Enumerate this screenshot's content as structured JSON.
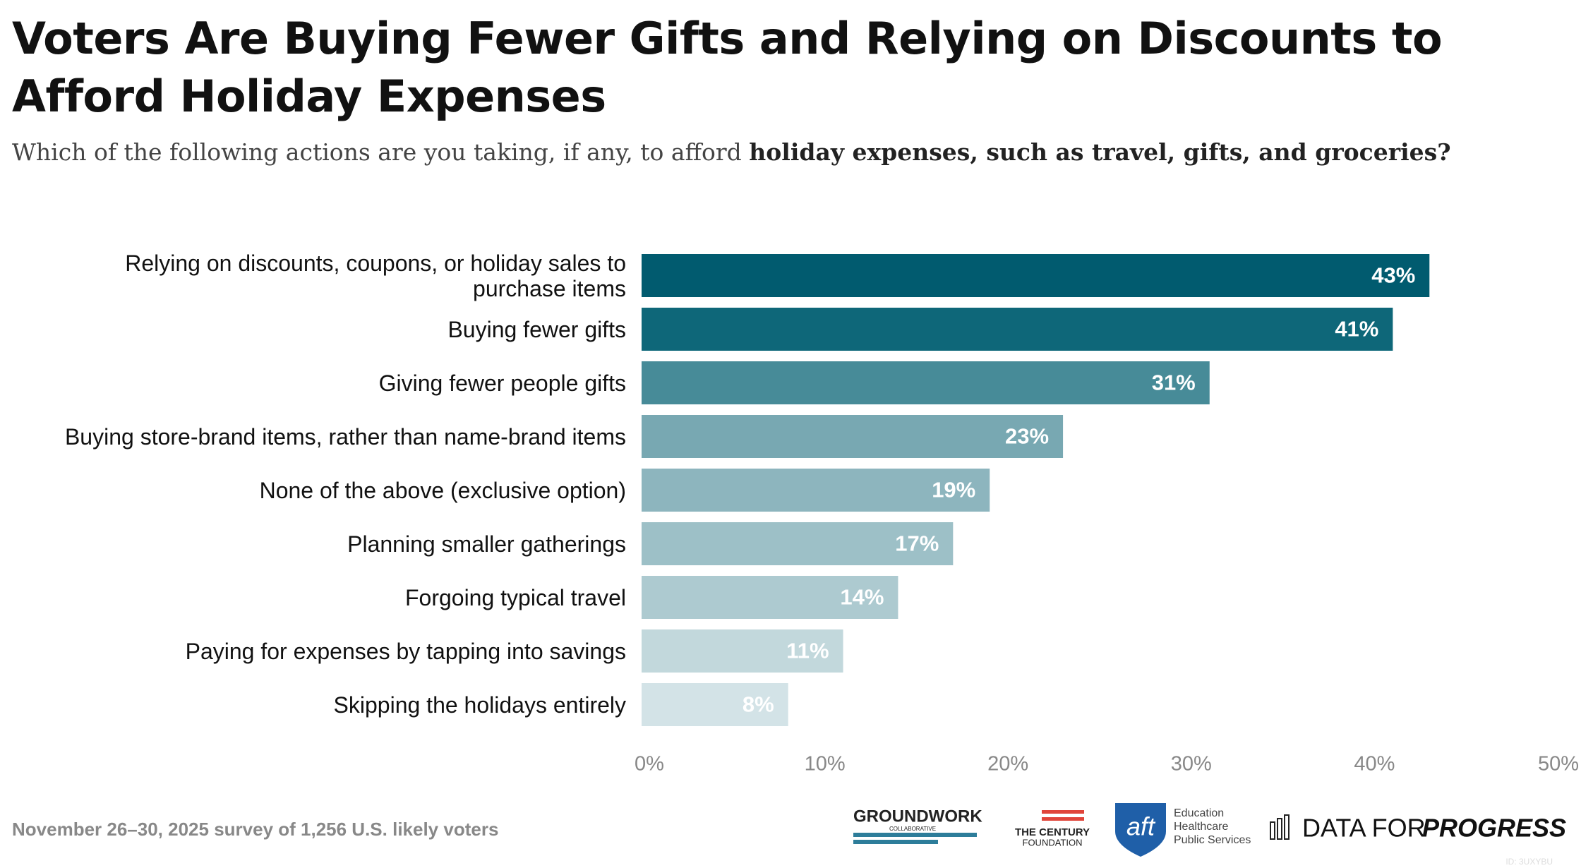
{
  "chart_data": {
    "type": "bar",
    "orientation": "horizontal",
    "title": "Voters Are Buying Fewer Gifts and Relying on Discounts to Afford Holiday Expenses",
    "subtitle": [
      "Which of the following actions are you taking, if any, to afford ",
      "holiday expenses, such as travel, gifts, and groceries?"
    ],
    "categories": [
      "Relying on discounts, coupons, or holiday sales to purchase items",
      "Buying fewer gifts",
      "Giving fewer people gifts",
      "Buying store-brand items, rather than name-brand items",
      "None of the above (exclusive option)",
      "Planning smaller gatherings",
      "Forgoing typical travel",
      "Paying for expenses by tapping into savings",
      "Skipping the holidays entirely"
    ],
    "values": [
      43,
      41,
      31,
      23,
      19,
      17,
      14,
      11,
      8
    ],
    "value_labels": [
      "43%",
      "41%",
      "31%",
      "23%",
      "19%",
      "17%",
      "14%",
      "11%",
      "8%"
    ],
    "colors": [
      "#015b6f",
      "#0e6779",
      "#478b98",
      "#78a8b2",
      "#8db5be",
      "#9dc0c7",
      "#adcad0",
      "#c2d8dc",
      "#d3e3e7"
    ],
    "xlim": [
      0,
      50
    ],
    "xticks": [
      {
        "value": 0,
        "label": "0%"
      },
      {
        "value": 10,
        "label": "10%"
      },
      {
        "value": 20,
        "label": "20%"
      },
      {
        "value": 30,
        "label": "30%"
      },
      {
        "value": 40,
        "label": "40%"
      },
      {
        "value": 50,
        "label": "50%"
      }
    ],
    "footer": "November 26–30, 2025 survey of 1,256 U.S. likely voters",
    "logos": [
      "GROUNDWORK",
      "COLLABORATIVE",
      "THE CENTURY",
      "FOUNDATION",
      "aft",
      "Education",
      "Healthcare",
      "Public Services",
      "DATA FOR",
      "PROGRESS"
    ],
    "watermark": "ID: 3UXYBU"
  }
}
